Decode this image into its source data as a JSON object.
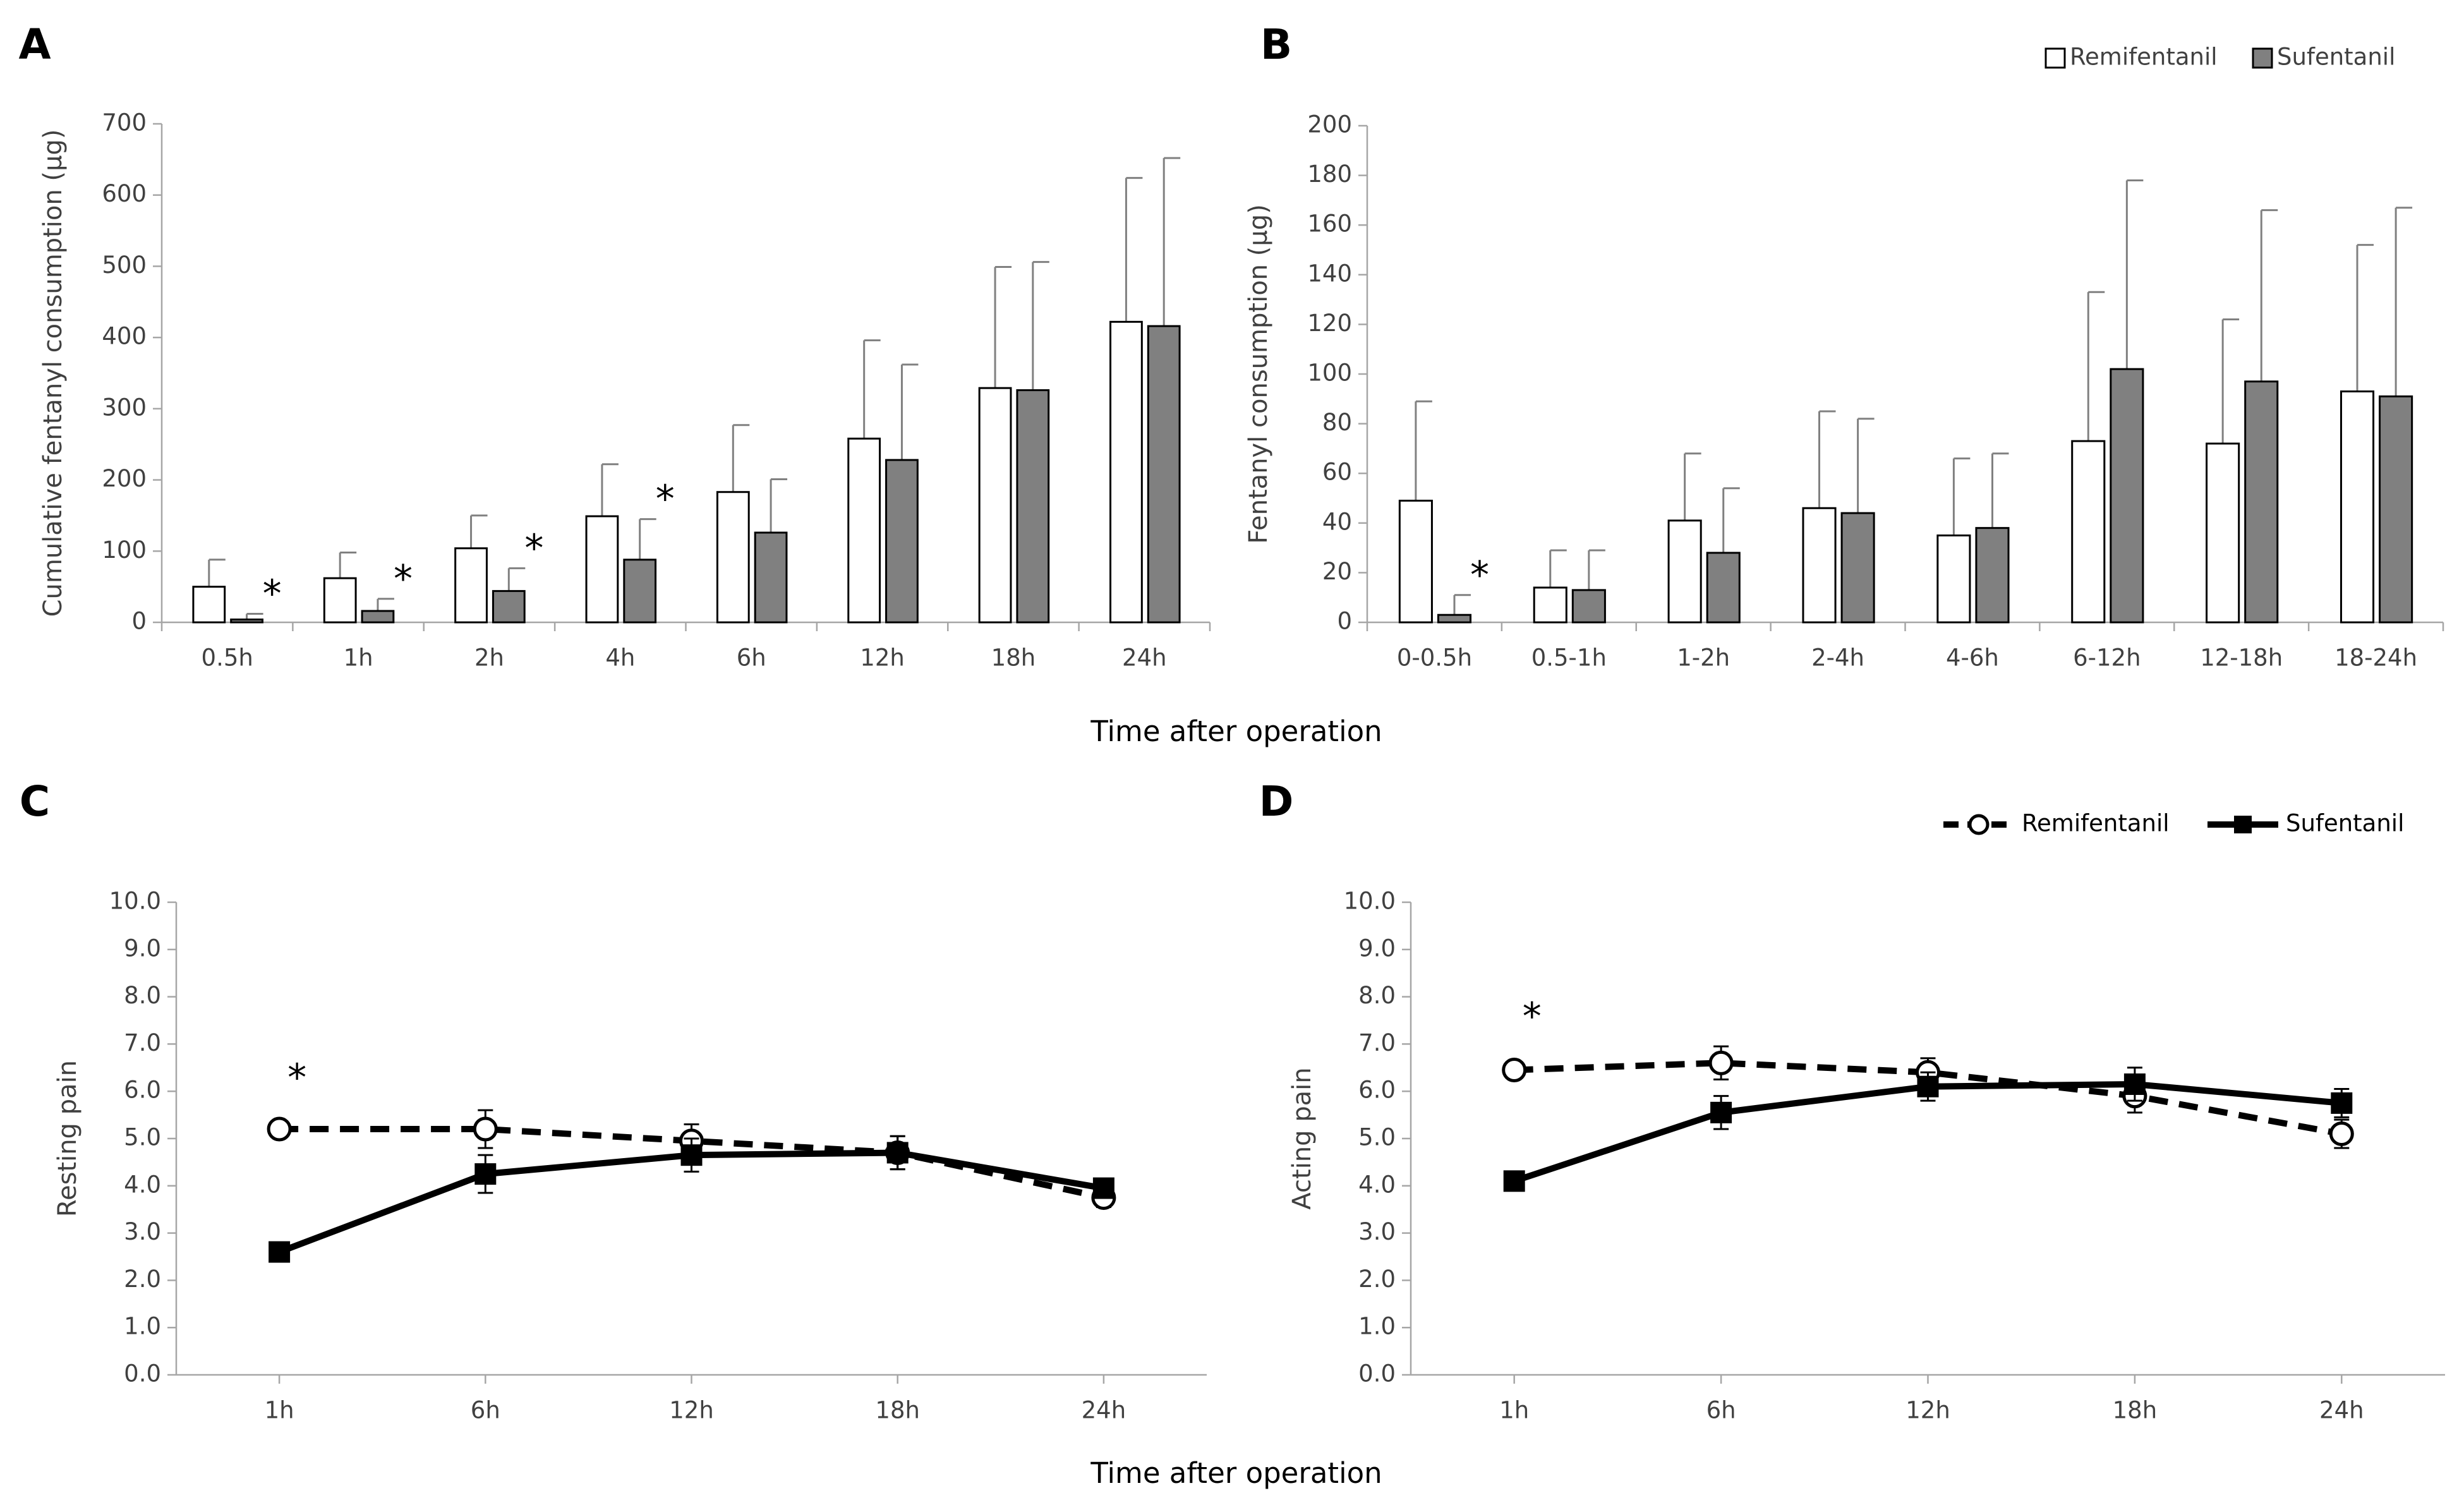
{
  "chart_data": [
    {
      "type": "bar",
      "panel": "A",
      "ylabel": "Cumulative fentanyl consumption (μg)",
      "xlabel": "Time after operation",
      "categories": [
        "0.5h",
        "1h",
        "2h",
        "4h",
        "6h",
        "12h",
        "18h",
        "24h"
      ],
      "series": [
        {
          "name": "Remifentanil",
          "color": "#ffffff",
          "values": [
            50,
            62,
            104,
            149,
            183,
            258,
            329,
            422
          ],
          "errors": [
            38,
            36,
            46,
            73,
            94,
            138,
            170,
            202
          ]
        },
        {
          "name": "Sufentanil",
          "color": "#808080",
          "values": [
            4,
            16,
            44,
            88,
            126,
            228,
            326,
            416
          ],
          "errors": [
            8,
            17,
            32,
            57,
            75,
            134,
            180,
            236
          ]
        }
      ],
      "significance": [
        "*",
        "*",
        "*",
        "*",
        null,
        null,
        null,
        null
      ],
      "ylim": [
        0,
        700
      ],
      "yticks": [
        0,
        100,
        200,
        300,
        400,
        500,
        600,
        700
      ],
      "legend": false
    },
    {
      "type": "bar",
      "panel": "B",
      "ylabel": "Fentanyl consumption (μg)",
      "categories": [
        "0-0.5h",
        "0.5-1h",
        "1-2h",
        "2-4h",
        "4-6h",
        "6-12h",
        "12-18h",
        "18-24h"
      ],
      "series": [
        {
          "name": "Remifentanil",
          "color": "#ffffff",
          "values": [
            49,
            14,
            41,
            46,
            35,
            73,
            72,
            93
          ],
          "errors": [
            40,
            15,
            27,
            39,
            31,
            60,
            50,
            59
          ]
        },
        {
          "name": "Sufentanil",
          "color": "#808080",
          "values": [
            3,
            13,
            28,
            44,
            38,
            102,
            97,
            91
          ],
          "errors": [
            8,
            16,
            26,
            38,
            30,
            76,
            69,
            76
          ]
        }
      ],
      "significance": [
        "*",
        null,
        null,
        null,
        null,
        null,
        null,
        null
      ],
      "ylim": [
        0,
        200
      ],
      "yticks": [
        0,
        20,
        40,
        60,
        80,
        100,
        120,
        140,
        160,
        180,
        200
      ],
      "legend": true
    },
    {
      "type": "line",
      "panel": "C",
      "ylabel": "Resting pain",
      "xlabel": "Time after operation",
      "categories": [
        "1h",
        "6h",
        "12h",
        "18h",
        "24h"
      ],
      "series": [
        {
          "name": "Remifentanil",
          "color": "#000000",
          "dashed": true,
          "marker": "circle",
          "values": [
            5.2,
            5.2,
            4.95,
            4.7,
            3.75
          ],
          "errors": [
            0.1,
            0.4,
            0.35,
            0.35,
            0.2
          ]
        },
        {
          "name": "Sufentanil",
          "color": "#000000",
          "dashed": false,
          "marker": "square",
          "values": [
            2.6,
            4.25,
            4.65,
            4.7,
            3.95
          ],
          "errors": [
            0.1,
            0.4,
            0.35,
            0.35,
            0.2
          ]
        }
      ],
      "significance": [
        "*",
        null,
        null,
        null,
        null
      ],
      "ylim": [
        0,
        10
      ],
      "yticks": [
        {
          "value": 0,
          "label": "0.0"
        },
        {
          "value": 1,
          "label": "1.0"
        },
        {
          "value": 2,
          "label": "2.0"
        },
        {
          "value": 3,
          "label": "3.0"
        },
        {
          "value": 4,
          "label": "4.0"
        },
        {
          "value": 5,
          "label": "5.0"
        },
        {
          "value": 6,
          "label": "6.0"
        },
        {
          "value": 7,
          "label": "7.0"
        },
        {
          "value": 8,
          "label": "8.0"
        },
        {
          "value": 9,
          "label": "9.0"
        },
        {
          "value": 10,
          "label": "10.0"
        }
      ],
      "legend": false
    },
    {
      "type": "line",
      "panel": "D",
      "ylabel": "Acting pain",
      "categories": [
        "1h",
        "6h",
        "12h",
        "18h",
        "24h"
      ],
      "series": [
        {
          "name": "Remifentanil",
          "color": "#000000",
          "dashed": true,
          "marker": "circle",
          "values": [
            6.45,
            6.6,
            6.4,
            5.9,
            5.1
          ],
          "errors": [
            0.15,
            0.35,
            0.3,
            0.35,
            0.3
          ]
        },
        {
          "name": "Sufentanil",
          "color": "#000000",
          "dashed": false,
          "marker": "square",
          "values": [
            4.1,
            5.55,
            6.1,
            6.15,
            5.75
          ],
          "errors": [
            0.15,
            0.35,
            0.3,
            0.35,
            0.3
          ]
        }
      ],
      "significance": [
        "*",
        null,
        null,
        null,
        null
      ],
      "ylim": [
        0,
        10
      ],
      "yticks": [
        {
          "value": 0,
          "label": "0.0"
        },
        {
          "value": 1,
          "label": "1.0"
        },
        {
          "value": 2,
          "label": "2.0"
        },
        {
          "value": 3,
          "label": "3.0"
        },
        {
          "value": 4,
          "label": "4.0"
        },
        {
          "value": 5,
          "label": "5.0"
        },
        {
          "value": 6,
          "label": "6.0"
        },
        {
          "value": 7,
          "label": "7.0"
        },
        {
          "value": 8,
          "label": "8.0"
        },
        {
          "value": 9,
          "label": "9.0"
        },
        {
          "value": 10,
          "label": "10.0"
        }
      ],
      "legend": true
    }
  ]
}
